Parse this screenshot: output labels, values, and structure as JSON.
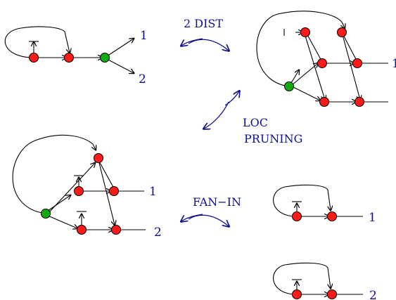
{
  "transforms": {
    "two_dist": "2 DIST",
    "loc_pruning_line1": "LOC",
    "loc_pruning_line2": "PRUNING",
    "fan_in": "FAN−IN"
  },
  "outputs": {
    "first": "1",
    "second": "2",
    "clipped": "1"
  },
  "colors": {
    "latch_node": "#ff1a1a",
    "fanout_node": "#11aa11",
    "annotation": "#10108a"
  }
}
